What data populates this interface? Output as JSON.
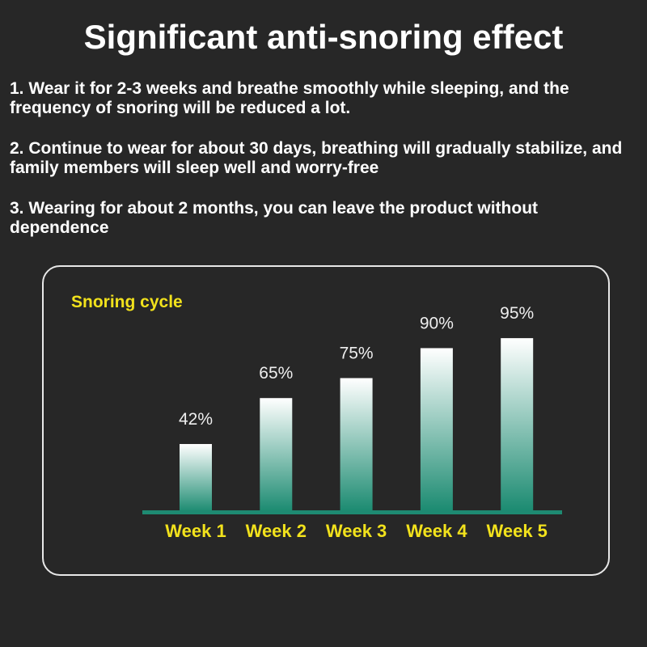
{
  "title": "Significant anti-snoring effect",
  "points": [
    "1. Wear it for 2-3 weeks and breathe smoothly while sleeping, and the frequency of snoring will be reduced a lot.",
    "2. Continue to wear for about 30 days, breathing will gradually stabilize, and family members will sleep well and worry-free",
    "3. Wearing for about 2 months, you can leave the product without dependence"
  ],
  "chart_data": {
    "type": "bar",
    "title": "Snoring cycle",
    "categories": [
      "Week 1",
      "Week 2",
      "Week 3",
      "Week 4",
      "Week 5"
    ],
    "values": [
      42,
      65,
      75,
      90,
      95
    ],
    "data_labels": [
      "42%",
      "65%",
      "75%",
      "90%",
      "95%"
    ],
    "grid": false,
    "colors": {
      "bar_top": "#ffffff",
      "bar_bottom": "#1a8a70",
      "axis": "#1e8a72",
      "labels": "#f2e21c"
    }
  }
}
